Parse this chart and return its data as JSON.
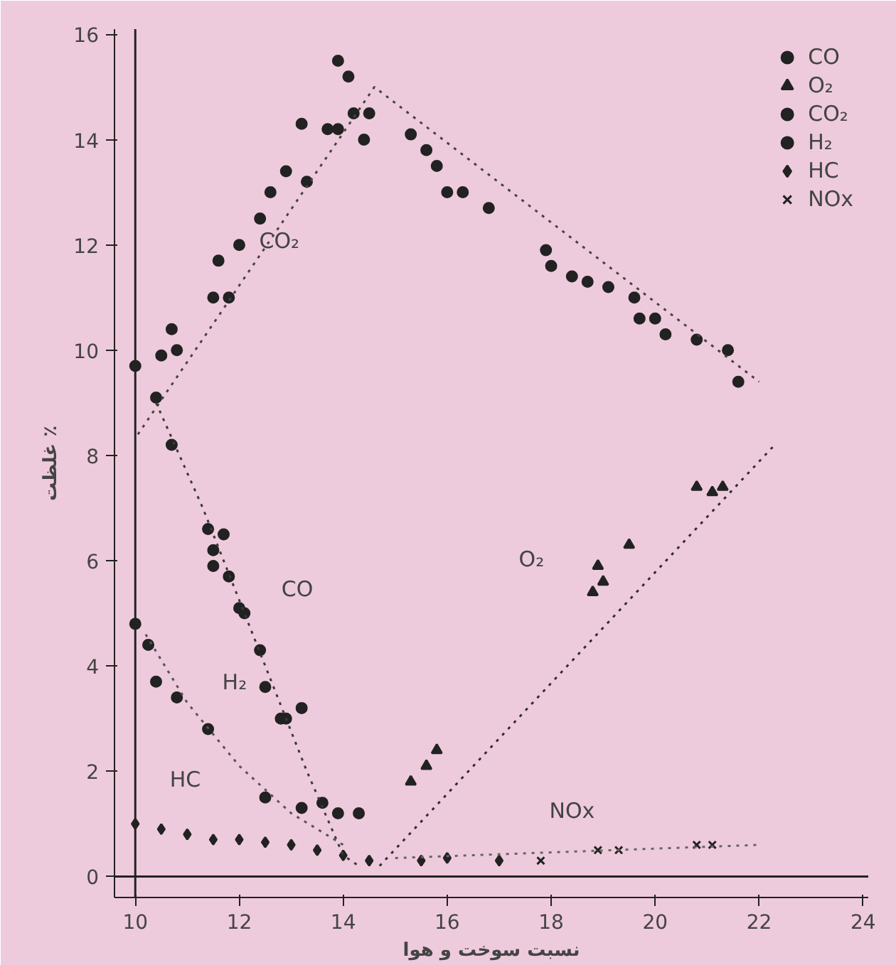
{
  "chart_data": {
    "type": "scatter",
    "xlabel": "نسبت سوخت و هوا",
    "ylabel": "غلظت ٪",
    "xlim": [
      9.6,
      24.1
    ],
    "ylim": [
      -0.4,
      16.1
    ],
    "xticks": [
      10,
      12,
      14,
      16,
      18,
      20,
      22,
      24
    ],
    "yticks": [
      0,
      2,
      4,
      6,
      8,
      10,
      12,
      14,
      16
    ],
    "grid": false,
    "legend": "top right",
    "ref_lines": [
      {
        "axis": "x",
        "value": 10,
        "label": null,
        "color": "#222222"
      },
      {
        "axis": "y",
        "value": 0,
        "label": null,
        "color": "#222222"
      }
    ],
    "annotations": [
      {
        "text": "CO₂",
        "x": 12.0,
        "y": 12.0
      },
      {
        "text": "CO",
        "x": 12.1,
        "y": 5.0
      },
      {
        "text": "H₂",
        "x": 11.4,
        "y": 2.8
      },
      {
        "text": "O₂",
        "x": 18.8,
        "y": 5.4
      },
      {
        "text": "HC",
        "x": 10.5,
        "y": 0.9
      },
      {
        "text": "NOx",
        "x": 17.8,
        "y": 0.3
      }
    ],
    "series": [
      {
        "name": "CO",
        "marker": "circle",
        "color": "#222222",
        "x": [
          10.0,
          10.4,
          10.7,
          11.4,
          11.7,
          11.5,
          11.5,
          11.8,
          12.0,
          12.1,
          12.4,
          12.5,
          12.8,
          12.9,
          13.2,
          13.6,
          13.9,
          14.3
        ],
        "values": [
          9.7,
          9.1,
          8.2,
          6.6,
          6.5,
          6.2,
          5.9,
          5.7,
          5.1,
          5.0,
          4.3,
          3.6,
          3.0,
          3.0,
          3.2,
          1.4,
          1.2,
          1.2
        ]
      },
      {
        "name": "O₂",
        "marker": "triangle",
        "color": "#222222",
        "x": [
          15.3,
          15.6,
          15.8,
          18.8,
          19.0,
          18.9,
          19.5,
          20.8,
          21.1,
          21.3
        ],
        "values": [
          1.8,
          2.1,
          2.4,
          5.4,
          5.6,
          5.9,
          6.3,
          7.4,
          7.3,
          7.4
        ]
      },
      {
        "name": "CO₂",
        "marker": "circle",
        "color": "#222222",
        "x": [
          10.5,
          10.7,
          10.8,
          11.5,
          11.6,
          11.8,
          12.0,
          12.4,
          12.6,
          12.9,
          13.2,
          13.3,
          13.7,
          13.9,
          13.9,
          14.1,
          14.2,
          14.4,
          14.5,
          15.3,
          15.6,
          15.8,
          16.0,
          16.3,
          16.8,
          17.9,
          18.0,
          18.4,
          18.7,
          19.1,
          19.6,
          19.7,
          20.0,
          20.2,
          20.8,
          21.4,
          21.6
        ],
        "values": [
          9.9,
          10.4,
          10.0,
          11.0,
          11.7,
          11.0,
          12.0,
          12.5,
          13.0,
          13.4,
          14.3,
          13.2,
          14.2,
          14.2,
          15.5,
          15.2,
          14.5,
          14.0,
          14.5,
          14.1,
          13.8,
          13.5,
          13.0,
          13.0,
          12.7,
          11.9,
          11.6,
          11.4,
          11.3,
          11.2,
          11.0,
          10.6,
          10.6,
          10.3,
          10.2,
          10.0,
          9.4
        ]
      },
      {
        "name": "H₂",
        "marker": "circle",
        "color": "#222222",
        "x": [
          10.0,
          10.25,
          10.4,
          10.8,
          11.4,
          12.5,
          13.2
        ],
        "values": [
          4.8,
          4.4,
          3.7,
          3.4,
          2.8,
          1.5,
          1.3
        ]
      },
      {
        "name": "HC",
        "marker": "diamond",
        "color": "#222222",
        "x": [
          10.0,
          10.5,
          11.0,
          11.5,
          12.0,
          12.5,
          13.0,
          13.5,
          14.0,
          14.5,
          15.5,
          16.0,
          17.0
        ],
        "values": [
          1.0,
          0.9,
          0.8,
          0.7,
          0.7,
          0.65,
          0.6,
          0.5,
          0.4,
          0.3,
          0.3,
          0.35,
          0.3
        ]
      },
      {
        "name": "NOx",
        "marker": "cross",
        "color": "#222222",
        "x": [
          17.8,
          18.9,
          19.3,
          20.8,
          21.1
        ],
        "values": [
          0.3,
          0.5,
          0.5,
          0.6,
          0.6
        ]
      },
      {
        "type": "line",
        "line_style": "dotted",
        "color": "#444444",
        "x": [
          10.05,
          14.6,
          22.0
        ],
        "values": [
          8.4,
          15.0,
          9.4
        ]
      },
      {
        "type": "line",
        "line_style": "dotted",
        "color": "#3a3a3a",
        "x": [
          10.4,
          11.3,
          12.5,
          13.3,
          14.0,
          14.3
        ],
        "values": [
          9.0,
          7.0,
          4.0,
          2.0,
          0.4,
          0.2
        ]
      },
      {
        "type": "line",
        "line_style": "dotted",
        "color": "#555555",
        "x": [
          10.2,
          11.0,
          12.0,
          13.0,
          14.0
        ],
        "values": [
          4.6,
          3.3,
          2.1,
          1.2,
          0.6
        ]
      },
      {
        "type": "line",
        "line_style": "dotted",
        "color": "#2e2e2e",
        "x": [
          14.7,
          22.3
        ],
        "values": [
          0.2,
          8.2
        ]
      },
      {
        "type": "line",
        "line_style": "dotted",
        "color": "#666666",
        "x": [
          15.0,
          22.0
        ],
        "values": [
          0.35,
          0.6
        ]
      }
    ]
  }
}
